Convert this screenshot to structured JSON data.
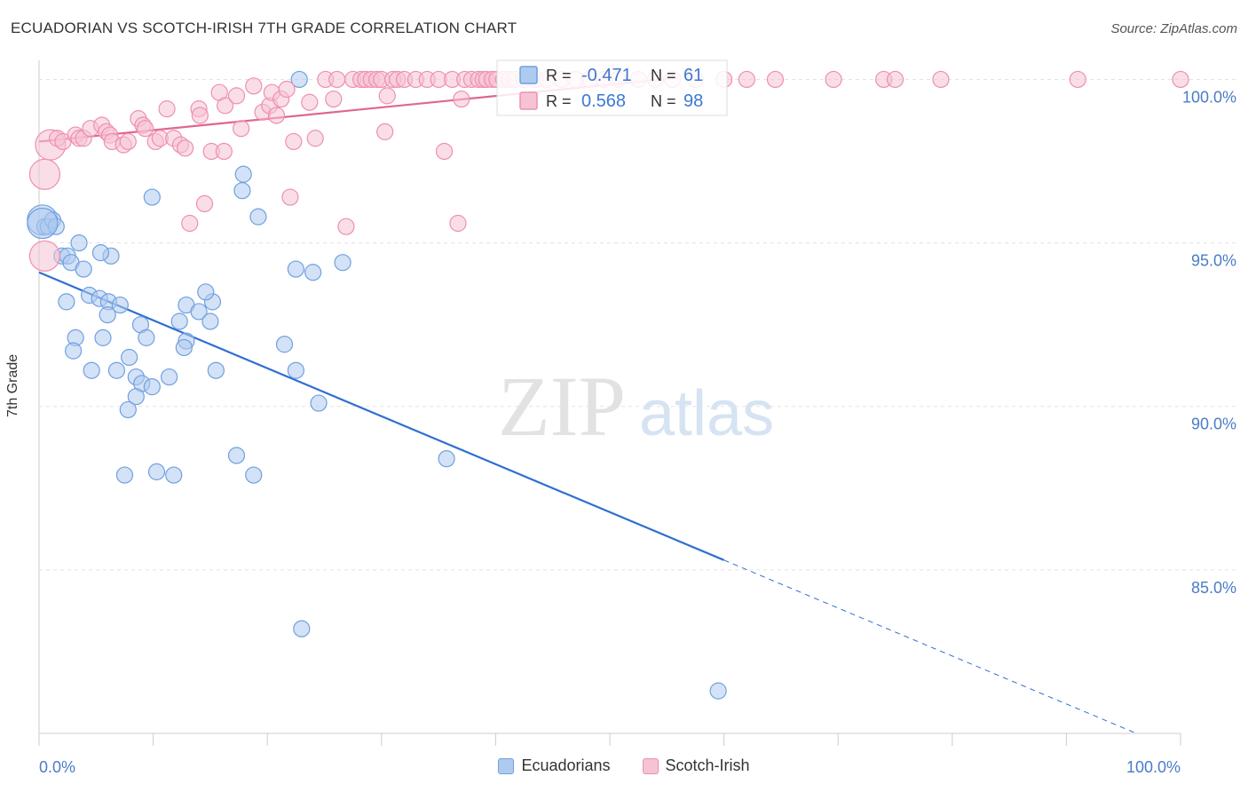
{
  "header": {
    "title": "ECUADORIAN VS SCOTCH-IRISH 7TH GRADE CORRELATION CHART",
    "source": "Source: ZipAtlas.com"
  },
  "watermark": {
    "zip": "ZIP",
    "atlas": "atlas"
  },
  "chart_data": {
    "type": "scatter",
    "ylabel": "7th Grade",
    "xlim": [
      0,
      100
    ],
    "ylim": [
      80,
      100.8
    ],
    "x_tick_labels": [
      {
        "value": 0,
        "label": "0.0%"
      },
      {
        "value": 100,
        "label": "100.0%"
      }
    ],
    "y_ticks": [
      {
        "value": 85,
        "label": "85.0%"
      },
      {
        "value": 90,
        "label": "90.0%"
      },
      {
        "value": 95,
        "label": "95.0%"
      },
      {
        "value": 100,
        "label": "100.0%"
      }
    ],
    "grid": true,
    "legend_placement": "top-center",
    "stats": [
      {
        "r_label": "R =",
        "r": "-0.471",
        "n_label": "N =",
        "n": "61",
        "color": "#6fa0e0"
      },
      {
        "r_label": "R =",
        "r": "0.568",
        "n_label": "N =",
        "n": "98",
        "color": "#ee8fb0"
      }
    ],
    "series": [
      {
        "name": "Ecuadorians",
        "color": "#6fa0e0",
        "fill": "#aecbef",
        "trend": {
          "x0": 0,
          "y0": 94.1,
          "x1": 60,
          "y1": 85.3,
          "dash_to_x": 96
        },
        "points": [
          [
            0.3,
            95.7
          ],
          [
            0.5,
            95.5
          ],
          [
            0.8,
            95.5
          ],
          [
            1.2,
            95.7
          ],
          [
            1.5,
            95.5
          ],
          [
            2.0,
            94.6
          ],
          [
            2.5,
            94.6
          ],
          [
            3.5,
            95.0
          ],
          [
            2.8,
            94.4
          ],
          [
            3.9,
            94.2
          ],
          [
            6.3,
            94.6
          ],
          [
            5.4,
            94.7
          ],
          [
            4.4,
            93.4
          ],
          [
            5.3,
            93.3
          ],
          [
            2.4,
            93.2
          ],
          [
            6.1,
            93.2
          ],
          [
            7.1,
            93.1
          ],
          [
            6.0,
            92.8
          ],
          [
            3.2,
            92.1
          ],
          [
            5.6,
            92.1
          ],
          [
            8.9,
            92.5
          ],
          [
            9.4,
            92.1
          ],
          [
            12.9,
            93.1
          ],
          [
            12.3,
            92.6
          ],
          [
            14.0,
            92.9
          ],
          [
            15.2,
            93.2
          ],
          [
            14.6,
            93.5
          ],
          [
            15.0,
            92.6
          ],
          [
            3.0,
            91.7
          ],
          [
            7.9,
            91.5
          ],
          [
            12.9,
            92.0
          ],
          [
            12.7,
            91.8
          ],
          [
            4.6,
            91.1
          ],
          [
            6.8,
            91.1
          ],
          [
            8.5,
            90.9
          ],
          [
            9.0,
            90.7
          ],
          [
            9.9,
            90.6
          ],
          [
            11.4,
            90.9
          ],
          [
            15.5,
            91.1
          ],
          [
            8.5,
            90.3
          ],
          [
            7.8,
            89.9
          ],
          [
            17.8,
            96.6
          ],
          [
            17.3,
            88.5
          ],
          [
            7.5,
            87.9
          ],
          [
            10.3,
            88.0
          ],
          [
            11.8,
            87.9
          ],
          [
            18.8,
            87.9
          ],
          [
            19.2,
            95.8
          ],
          [
            17.9,
            97.1
          ],
          [
            22.5,
            94.2
          ],
          [
            24.0,
            94.1
          ],
          [
            26.6,
            94.4
          ],
          [
            21.5,
            91.9
          ],
          [
            22.5,
            91.1
          ],
          [
            24.5,
            90.1
          ],
          [
            35.7,
            88.4
          ],
          [
            22.8,
            100.0
          ],
          [
            9.9,
            96.4
          ],
          [
            23.0,
            83.2
          ],
          [
            59.5,
            81.3
          ],
          [
            0.3,
            95.6
          ]
        ]
      },
      {
        "name": "Scotch-Irish",
        "color": "#ee8fb0",
        "fill": "#f6c3d4",
        "trend": {
          "x0": 0,
          "y0": 98.1,
          "x1": 56,
          "y1": 100.05,
          "dash_to_x": null
        },
        "points": [
          [
            0.5,
            97.1
          ],
          [
            0.5,
            94.6
          ],
          [
            1.0,
            98.0
          ],
          [
            1.6,
            98.2
          ],
          [
            2.1,
            98.1
          ],
          [
            3.2,
            98.3
          ],
          [
            3.5,
            98.2
          ],
          [
            3.9,
            98.2
          ],
          [
            4.5,
            98.5
          ],
          [
            5.5,
            98.6
          ],
          [
            5.9,
            98.4
          ],
          [
            6.2,
            98.3
          ],
          [
            6.4,
            98.1
          ],
          [
            7.4,
            98.0
          ],
          [
            7.8,
            98.1
          ],
          [
            8.7,
            98.8
          ],
          [
            9.1,
            98.6
          ],
          [
            9.3,
            98.5
          ],
          [
            10.2,
            98.1
          ],
          [
            10.6,
            98.2
          ],
          [
            11.2,
            99.1
          ],
          [
            11.8,
            98.2
          ],
          [
            12.4,
            98.0
          ],
          [
            12.8,
            97.9
          ],
          [
            14.0,
            99.1
          ],
          [
            14.1,
            98.9
          ],
          [
            14.5,
            96.2
          ],
          [
            13.2,
            95.6
          ],
          [
            15.1,
            97.8
          ],
          [
            15.8,
            99.6
          ],
          [
            16.3,
            99.2
          ],
          [
            16.2,
            97.8
          ],
          [
            17.3,
            99.5
          ],
          [
            17.7,
            98.5
          ],
          [
            18.8,
            99.8
          ],
          [
            19.6,
            99.0
          ],
          [
            20.2,
            99.2
          ],
          [
            20.4,
            99.6
          ],
          [
            20.8,
            98.9
          ],
          [
            21.2,
            99.4
          ],
          [
            21.7,
            99.7
          ],
          [
            22.0,
            96.4
          ],
          [
            22.3,
            98.1
          ],
          [
            23.7,
            99.3
          ],
          [
            24.2,
            98.2
          ],
          [
            25.1,
            100.0
          ],
          [
            25.8,
            99.4
          ],
          [
            26.1,
            100.0
          ],
          [
            26.9,
            95.5
          ],
          [
            27.5,
            100.0
          ],
          [
            28.2,
            100.0
          ],
          [
            28.6,
            100.0
          ],
          [
            29.1,
            100.0
          ],
          [
            29.6,
            100.0
          ],
          [
            30.0,
            100.0
          ],
          [
            30.3,
            98.4
          ],
          [
            30.5,
            99.5
          ],
          [
            31.0,
            100.0
          ],
          [
            31.4,
            100.0
          ],
          [
            32.0,
            100.0
          ],
          [
            33.0,
            100.0
          ],
          [
            34.0,
            100.0
          ],
          [
            35.0,
            100.0
          ],
          [
            35.5,
            97.8
          ],
          [
            36.2,
            100.0
          ],
          [
            36.7,
            95.6
          ],
          [
            37.0,
            99.4
          ],
          [
            37.3,
            100.0
          ],
          [
            37.9,
            100.0
          ],
          [
            38.5,
            100.0
          ],
          [
            38.9,
            100.0
          ],
          [
            39.2,
            100.0
          ],
          [
            39.7,
            100.0
          ],
          [
            40.1,
            100.0
          ],
          [
            40.7,
            100.0
          ],
          [
            41.2,
            100.0
          ],
          [
            41.7,
            100.0
          ],
          [
            42.5,
            100.0
          ],
          [
            43.5,
            100.0
          ],
          [
            44.5,
            100.0
          ],
          [
            45.8,
            100.0
          ],
          [
            47.0,
            100.0
          ],
          [
            48.2,
            100.0
          ],
          [
            49.5,
            100.0
          ],
          [
            50.7,
            100.0
          ],
          [
            52.5,
            100.0
          ],
          [
            54.0,
            100.0
          ],
          [
            55.5,
            100.0
          ],
          [
            57.5,
            100.0
          ],
          [
            60.0,
            100.0
          ],
          [
            62.0,
            100.0
          ],
          [
            64.5,
            100.0
          ],
          [
            69.6,
            100.0
          ],
          [
            74.0,
            100.0
          ],
          [
            75.0,
            100.0
          ],
          [
            79.0,
            100.0
          ],
          [
            91.0,
            100.0
          ],
          [
            100.0,
            100.0
          ]
        ]
      }
    ]
  }
}
